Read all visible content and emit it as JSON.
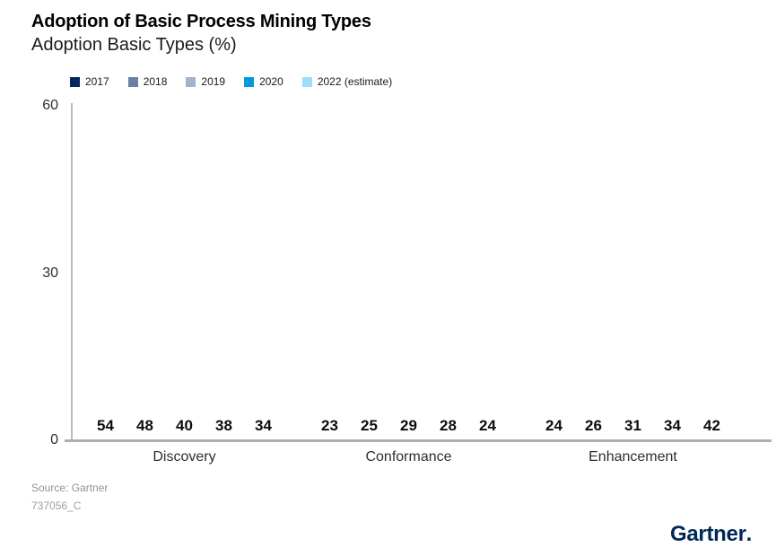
{
  "chart_data": {
    "type": "bar",
    "title": "Adoption of Basic Process Mining Types",
    "subtitle": "Adoption Basic Types (%)",
    "categories": [
      "Discovery",
      "Conformance",
      "Enhancement"
    ],
    "series": [
      {
        "name": "2017",
        "color": "#05265a",
        "values": [
          54,
          23,
          24
        ]
      },
      {
        "name": "2018",
        "color": "#6a81a3",
        "values": [
          48,
          25,
          26
        ]
      },
      {
        "name": "2019",
        "color": "#a4b4ce",
        "values": [
          40,
          29,
          31
        ]
      },
      {
        "name": "2020",
        "color": "#009cd9",
        "values": [
          38,
          28,
          34
        ]
      },
      {
        "name": "2022 (estimate)",
        "color": "#99dff8",
        "values": [
          34,
          24,
          42
        ]
      }
    ],
    "ylim": [
      0,
      60
    ],
    "yticks": [
      60,
      30,
      0
    ],
    "grid": false,
    "legend_position": "top",
    "value_labels": true,
    "axis_color": "#a9aeb3"
  },
  "footer": {
    "source": "Source: Gartner",
    "doc_id": "737056_C",
    "logo_text": "Gartner",
    "logo_mark": "."
  }
}
